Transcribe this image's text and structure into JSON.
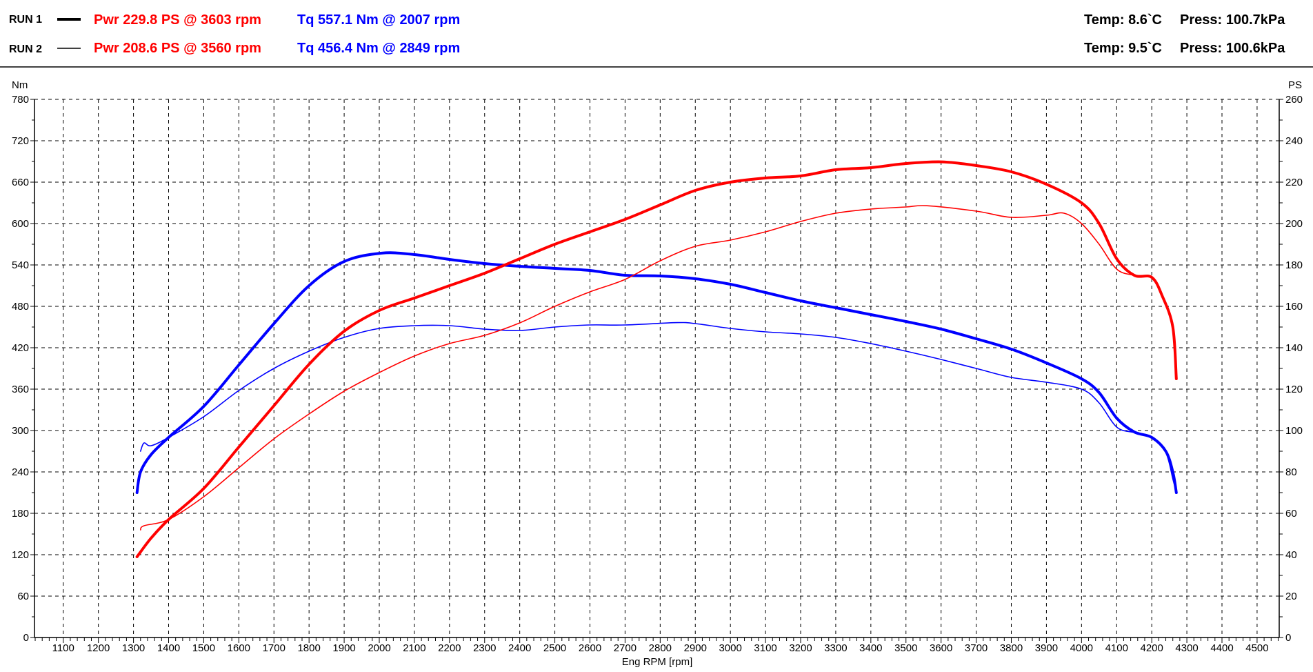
{
  "header": {
    "runs": [
      {
        "label": "RUN 1",
        "power": "Pwr  229.8 PS @ 3603 rpm",
        "torque": "Tq 557.1 Nm @ 2007 rpm",
        "temp": "Temp: 8.6`C",
        "press": "Press: 100.7kPa",
        "line_style": "thick"
      },
      {
        "label": "RUN 2",
        "power": "Pwr  208.6 PS @ 3560 rpm",
        "torque": "Tq 456.4 Nm @ 2849 rpm",
        "temp": "Temp: 9.5`C",
        "press": "Press: 100.6kPa",
        "line_style": "thin"
      }
    ]
  },
  "chart_data": {
    "type": "line",
    "xlabel": "Eng RPM [rpm]",
    "ylabel_left": "Nm",
    "ylabel_right": "PS",
    "xlim": [
      1018,
      4563
    ],
    "ylim_left": [
      0,
      780
    ],
    "ylim_right": [
      0,
      260
    ],
    "x_ticks": [
      1100,
      1200,
      1300,
      1400,
      1500,
      1600,
      1700,
      1800,
      1900,
      2000,
      2100,
      2200,
      2300,
      2400,
      2500,
      2600,
      2700,
      2800,
      2900,
      3000,
      3100,
      3200,
      3300,
      3400,
      3500,
      3600,
      3700,
      3800,
      3900,
      4000,
      4100,
      4200,
      4300,
      4400,
      4500
    ],
    "y_ticks_left": [
      0,
      60,
      120,
      180,
      240,
      300,
      360,
      420,
      480,
      540,
      600,
      660,
      720,
      780
    ],
    "y_ticks_right": [
      0,
      20,
      40,
      60,
      80,
      100,
      120,
      140,
      160,
      180,
      200,
      220,
      240,
      260
    ],
    "grid": true,
    "colors": {
      "power": "#ff0000",
      "torque": "#0000ff",
      "axis": "#000000"
    },
    "series": [
      {
        "run": "RUN 1",
        "quantity": "torque",
        "axis": "left",
        "color": "#0000ff",
        "width": "thick",
        "x": [
          1310,
          1320,
          1350,
          1400,
          1500,
          1600,
          1700,
          1800,
          1900,
          2007,
          2100,
          2200,
          2300,
          2400,
          2500,
          2600,
          2700,
          2800,
          2900,
          3000,
          3100,
          3200,
          3300,
          3400,
          3500,
          3600,
          3700,
          3800,
          3900,
          4000,
          4050,
          4100,
          4150,
          4200,
          4240,
          4260,
          4270
        ],
        "y": [
          210,
          240,
          265,
          290,
          335,
          395,
          455,
          510,
          545,
          557.1,
          555,
          548,
          542,
          538,
          535,
          532,
          525,
          524,
          520,
          512,
          500,
          488,
          478,
          468,
          458,
          447,
          433,
          418,
          398,
          375,
          355,
          318,
          298,
          290,
          270,
          240,
          210
        ]
      },
      {
        "run": "RUN 2",
        "quantity": "torque",
        "axis": "left",
        "color": "#0000ff",
        "width": "thin",
        "x": [
          1320,
          1330,
          1350,
          1400,
          1500,
          1600,
          1700,
          1800,
          1900,
          2000,
          2100,
          2200,
          2300,
          2400,
          2500,
          2600,
          2700,
          2849,
          2900,
          3000,
          3100,
          3200,
          3300,
          3400,
          3500,
          3600,
          3700,
          3800,
          3900,
          4000,
          4050,
          4100,
          4150,
          4200,
          4240,
          4260,
          4270
        ],
        "y": [
          270,
          282,
          278,
          290,
          320,
          358,
          390,
          415,
          435,
          448,
          452,
          452,
          447,
          445,
          450,
          453,
          453,
          456.4,
          455,
          448,
          443,
          440,
          435,
          426,
          415,
          403,
          390,
          377,
          370,
          360,
          340,
          305,
          297,
          290,
          268,
          230,
          210
        ]
      },
      {
        "run": "RUN 1",
        "quantity": "power",
        "axis": "right",
        "color": "#ff0000",
        "width": "thick",
        "x": [
          1310,
          1350,
          1400,
          1500,
          1600,
          1700,
          1800,
          1900,
          2000,
          2100,
          2200,
          2300,
          2400,
          2500,
          2600,
          2700,
          2800,
          2900,
          3000,
          3100,
          3200,
          3300,
          3400,
          3500,
          3603,
          3700,
          3800,
          3900,
          4000,
          4050,
          4100,
          4150,
          4200,
          4230,
          4260,
          4270
        ],
        "y": [
          39,
          48,
          57,
          72,
          92,
          112,
          132,
          148,
          158,
          164,
          170,
          176,
          183,
          190,
          196,
          202,
          209,
          216,
          220,
          222,
          223,
          226,
          227,
          229,
          229.8,
          228,
          225,
          219,
          210,
          200,
          183,
          175,
          174,
          165,
          150,
          125
        ]
      },
      {
        "run": "RUN 2",
        "quantity": "power",
        "axis": "right",
        "color": "#ff0000",
        "width": "thin",
        "x": [
          1320,
          1330,
          1400,
          1500,
          1600,
          1700,
          1800,
          1900,
          2000,
          2100,
          2200,
          2300,
          2400,
          2500,
          2600,
          2700,
          2800,
          2900,
          3000,
          3100,
          3200,
          3300,
          3400,
          3500,
          3560,
          3700,
          3800,
          3900,
          3950,
          4000,
          4050,
          4100,
          4150,
          4200,
          4230,
          4260,
          4270
        ],
        "y": [
          52,
          54,
          57,
          68,
          82,
          96,
          108,
          119,
          128,
          136,
          142,
          146,
          152,
          160,
          167,
          173,
          182,
          189,
          192,
          196,
          201,
          205,
          207,
          208,
          208.6,
          206,
          203,
          204,
          205,
          200,
          190,
          178,
          175,
          174,
          165,
          150,
          130
        ]
      }
    ]
  }
}
